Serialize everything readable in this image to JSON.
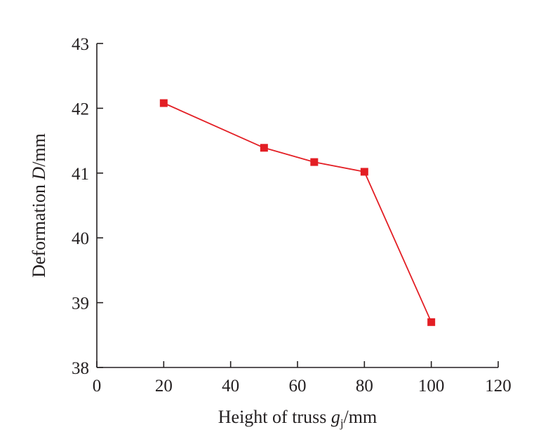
{
  "chart_data": {
    "type": "line",
    "title": "",
    "xlabel": {
      "prefix": "Height of truss ",
      "var": "g",
      "sub": "j",
      "suffix": "/mm"
    },
    "ylabel": {
      "prefix": "Deformation ",
      "var": "D",
      "suffix": "/mm"
    },
    "xlim": [
      0,
      120
    ],
    "ylim": [
      38,
      43
    ],
    "xticks": [
      0,
      20,
      40,
      60,
      80,
      100,
      120
    ],
    "yticks": [
      38,
      39,
      40,
      41,
      42,
      43
    ],
    "grid": false,
    "series": [
      {
        "x": [
          20,
          50,
          65,
          80,
          100
        ],
        "y": [
          42.08,
          41.39,
          41.17,
          41.02,
          38.7
        ],
        "color": "#e31e24",
        "marker": "square"
      }
    ]
  }
}
